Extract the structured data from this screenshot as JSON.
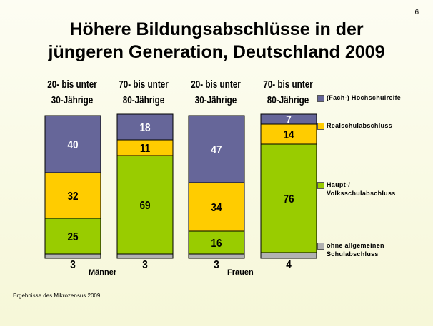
{
  "page_number": "6",
  "title_lines": [
    "Höhere Bildungsabschlüsse in der",
    "jüngeren Generation, Deutschland 2009"
  ],
  "footnote": "Ergebnisse des Mikrozensus 2009",
  "colors": {
    "hochschulreife": "#666699",
    "realschul": "#ffcc00",
    "haupt": "#99cc00",
    "ohne": "#b2b2b2",
    "background": "#fbfbe6"
  },
  "chart_data": {
    "type": "bar",
    "stacked": true,
    "normalized_to": 100,
    "categories": [
      {
        "header": [
          "20- bis unter",
          "30-Jährige"
        ],
        "group": "Männer"
      },
      {
        "header": [
          "70- bis unter",
          "80-Jährige"
        ],
        "group": "Männer"
      },
      {
        "header": [
          "20- bis unter",
          "30-Jährige"
        ],
        "group": "Frauen"
      },
      {
        "header": [
          "70- bis unter",
          "80-Jährige"
        ],
        "group": "Frauen"
      }
    ],
    "groups": [
      "Männer",
      "Frauen"
    ],
    "series": [
      {
        "name": "ohne allgemeinen Schulabschluss",
        "legend_label": "ohne allgemeinen\n Schulabschluss",
        "color": "#b2b2b2",
        "values": [
          3,
          3,
          3,
          4
        ]
      },
      {
        "name": "Haupt-/ Volksschulabschluss",
        "legend_label": "Haupt-/\nVolksschulabschluss",
        "color": "#99cc00",
        "values": [
          25,
          69,
          16,
          76
        ]
      },
      {
        "name": "Realschulabschluss",
        "legend_label": "Realschulabschluss",
        "color": "#ffcc00",
        "values": [
          32,
          11,
          34,
          14
        ]
      },
      {
        "name": "(Fach-) Hochschulreife",
        "legend_label": "(Fach-) Hochschulreife",
        "color": "#666699",
        "values": [
          40,
          18,
          47,
          7
        ]
      }
    ],
    "legend_position": "right",
    "grid": false
  }
}
